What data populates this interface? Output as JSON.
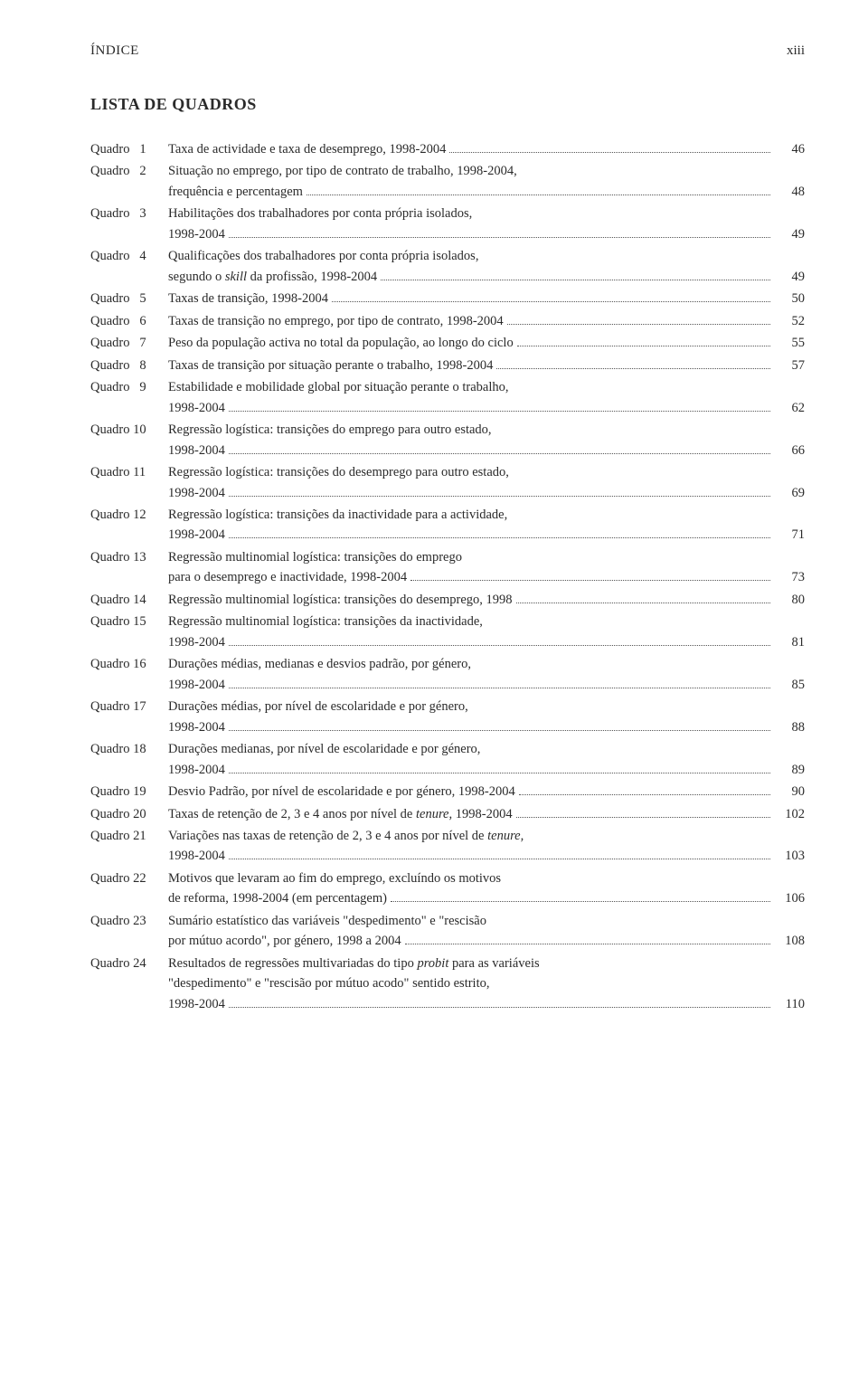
{
  "header": {
    "left": "ÍNDICE",
    "right": "xiii"
  },
  "section_title": "LISTA DE QUADROS",
  "entries": [
    {
      "label": "Quadro",
      "num": "1",
      "lines": [
        "Taxa de actividade e taxa de desemprego, 1998-2004"
      ],
      "page": "46"
    },
    {
      "label": "Quadro",
      "num": "2",
      "lines": [
        "Situação no emprego, por tipo de contrato de trabalho, 1998-2004,",
        "frequência e percentagem"
      ],
      "page": "48"
    },
    {
      "label": "Quadro",
      "num": "3",
      "lines": [
        "Habilitações dos trabalhadores por conta própria isolados,",
        "1998-2004"
      ],
      "page": "49"
    },
    {
      "label": "Quadro",
      "num": "4",
      "lines": [
        "Qualificações dos trabalhadores por conta própria isolados,",
        "segundo o <span class=\"italic\">skill</span> da profissão, 1998-2004"
      ],
      "page": "49"
    },
    {
      "label": "Quadro",
      "num": "5",
      "lines": [
        "Taxas de transição, 1998-2004"
      ],
      "page": "50"
    },
    {
      "label": "Quadro",
      "num": "6",
      "lines": [
        "Taxas de transição no emprego, por tipo de contrato, 1998-2004"
      ],
      "page": "52"
    },
    {
      "label": "Quadro",
      "num": "7",
      "lines": [
        "Peso da população activa no total da população, ao longo do ciclo"
      ],
      "page": "55"
    },
    {
      "label": "Quadro",
      "num": "8",
      "lines": [
        "Taxas de transição por situação perante o trabalho, 1998-2004"
      ],
      "page": "57"
    },
    {
      "label": "Quadro",
      "num": "9",
      "lines": [
        "Estabilidade e mobilidade global por situação perante o trabalho,",
        "1998-2004"
      ],
      "page": "62"
    },
    {
      "label": "Quadro",
      "num": "10",
      "lines": [
        "Regressão logística: transições do emprego para outro estado,",
        "1998-2004"
      ],
      "page": "66"
    },
    {
      "label": "Quadro",
      "num": "11",
      "lines": [
        "Regressão logística: transições do desemprego para outro estado,",
        "1998-2004"
      ],
      "page": "69"
    },
    {
      "label": "Quadro",
      "num": "12",
      "lines": [
        "Regressão logística: transições da inactividade para a actividade,",
        "1998-2004"
      ],
      "page": "71"
    },
    {
      "label": "Quadro",
      "num": "13",
      "lines": [
        "Regressão multinomial logística: transições do emprego",
        "para o desemprego e inactividade, 1998-2004"
      ],
      "page": "73"
    },
    {
      "label": "Quadro",
      "num": "14",
      "lines": [
        "Regressão multinomial logística: transições do desemprego, 1998"
      ],
      "page": "80"
    },
    {
      "label": "Quadro",
      "num": "15",
      "lines": [
        "Regressão multinomial logística: transições da inactividade,",
        "1998-2004"
      ],
      "page": "81"
    },
    {
      "label": "Quadro",
      "num": "16",
      "lines": [
        "Durações médias, medianas e desvios padrão, por género,",
        "1998-2004"
      ],
      "page": "85"
    },
    {
      "label": "Quadro",
      "num": "17",
      "lines": [
        "Durações médias, por nível de escolaridade e por género,",
        "1998-2004"
      ],
      "page": "88"
    },
    {
      "label": "Quadro",
      "num": "18",
      "lines": [
        "Durações medianas, por nível de escolaridade e por género,",
        "1998-2004"
      ],
      "page": "89"
    },
    {
      "label": "Quadro",
      "num": "19",
      "lines": [
        "Desvio Padrão, por nível de escolaridade e por género, 1998-2004"
      ],
      "page": "90"
    },
    {
      "label": "Quadro",
      "num": "20",
      "lines": [
        "Taxas de retenção de 2, 3 e 4 anos por nível de <span class=\"italic\">tenure,</span> 1998-2004"
      ],
      "page": "102"
    },
    {
      "label": "Quadro",
      "num": "21",
      "lines": [
        "Variações nas taxas de retenção de 2, 3 e 4 anos por nível de <span class=\"italic\">tenure,</span>",
        "1998-2004"
      ],
      "page": "103"
    },
    {
      "label": "Quadro",
      "num": "22",
      "lines": [
        "Motivos que levaram ao fim do emprego, excluíndo os motivos",
        "de reforma, 1998-2004 (em percentagem)"
      ],
      "page": "106"
    },
    {
      "label": "Quadro",
      "num": "23",
      "lines": [
        "Sumário estatístico das variáveis \"despedimento\" e \"rescisão",
        "por mútuo acordo\", por género, 1998 a 2004"
      ],
      "page": "108"
    },
    {
      "label": "Quadro",
      "num": "24",
      "lines": [
        "Resultados de regressões multivariadas do tipo <span class=\"italic\">probit</span> para as variáveis",
        "\"despedimento\" e \"rescisão por mútuo acodo\" sentido estrito,",
        "1998-2004"
      ],
      "page": "110"
    }
  ]
}
